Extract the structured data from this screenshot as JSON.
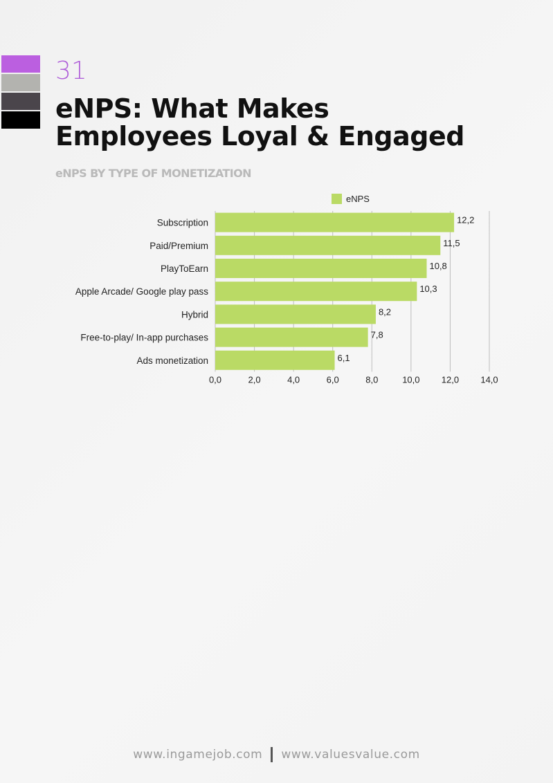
{
  "brand": {
    "swatches": [
      "#bb5fe0",
      "#b3b3af",
      "#4a454b",
      "#000000"
    ],
    "accent": "#b061d9"
  },
  "page": {
    "number": "31",
    "title_line1": "eNPS: What Makes",
    "title_line2": "Employees Loyal & Engaged",
    "subtitle": "eNPS BY TYPE OF MONETIZATION"
  },
  "footer": {
    "left": "www.ingamejob.com",
    "right": "www.valuesvalue.com"
  },
  "chart_data": {
    "type": "bar",
    "orientation": "horizontal",
    "title": "",
    "xlabel": "",
    "ylabel": "",
    "categories": [
      "Subscription",
      "Paid/Premium",
      "PlayToEarn",
      "Apple Arcade/ Google play pass",
      "Hybrid",
      "Free-to-play/ In-app purchases",
      "Ads monetization"
    ],
    "series": [
      {
        "name": "eNPS",
        "values": [
          12.2,
          11.5,
          10.8,
          10.3,
          8.2,
          7.8,
          6.1
        ],
        "color": "#bada65"
      }
    ],
    "value_labels": [
      "12,2",
      "11,5",
      "10,8",
      "10,3",
      "8,2",
      "7,8",
      "6,1"
    ],
    "xlim": [
      0,
      14
    ],
    "ticks": [
      "0,0",
      "2,0",
      "4,0",
      "6,0",
      "8,0",
      "10,0",
      "12,0",
      "14,0"
    ],
    "gridlines": "vertical",
    "legend": "top"
  }
}
